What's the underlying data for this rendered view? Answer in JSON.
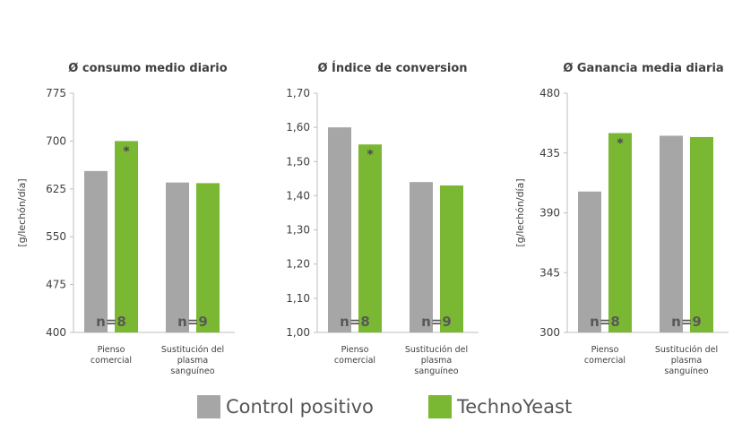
{
  "colors": {
    "control": "#a6a6a6",
    "techno": "#7ab833",
    "axis": "#bfbfbf",
    "text": "#404040",
    "nlabel": "#595959"
  },
  "legend": {
    "control": "Control positivo",
    "techno": "TechnoYeast"
  },
  "chart_data": [
    {
      "type": "bar",
      "title": "Ø consumo medio diario",
      "ylabel": "[g/lechón/día]",
      "ylim": [
        400,
        775
      ],
      "yticks": [
        "400",
        "475",
        "550",
        "625",
        "700",
        "775"
      ],
      "ytick_values": [
        400,
        475,
        550,
        625,
        700,
        775
      ],
      "categories": [
        [
          "Pienso",
          "comercial"
        ],
        [
          "Sustitución del",
          "plasma",
          "sanguíneo"
        ]
      ],
      "n_labels": [
        "n=8",
        "n=9"
      ],
      "series": [
        {
          "name": "Control positivo",
          "values": [
            653,
            635
          ]
        },
        {
          "name": "TechnoYeast",
          "values": [
            700,
            634
          ]
        }
      ],
      "annotations": [
        {
          "text": "*",
          "category": 0,
          "series": 1
        }
      ]
    },
    {
      "type": "bar",
      "title": "Ø Índice de conversion",
      "ylabel": "",
      "ylim": [
        1.0,
        1.7
      ],
      "yticks": [
        "1,00",
        "1,10",
        "1,20",
        "1,30",
        "1,40",
        "1,50",
        "1,60",
        "1,70"
      ],
      "ytick_values": [
        1.0,
        1.1,
        1.2,
        1.3,
        1.4,
        1.5,
        1.6,
        1.7
      ],
      "categories": [
        [
          "Pienso",
          "comercial"
        ],
        [
          "Sustitución del",
          "plasma",
          "sanguíneo"
        ]
      ],
      "n_labels": [
        "n=8",
        "n=9"
      ],
      "series": [
        {
          "name": "Control positivo",
          "values": [
            1.6,
            1.44
          ]
        },
        {
          "name": "TechnoYeast",
          "values": [
            1.55,
            1.43
          ]
        }
      ],
      "annotations": [
        {
          "text": "*",
          "category": 0,
          "series": 1
        }
      ]
    },
    {
      "type": "bar",
      "title": "Ø Ganancia media diaria",
      "ylabel": "[g/lechón/día]",
      "ylim": [
        300,
        480
      ],
      "yticks": [
        "300",
        "345",
        "390",
        "435",
        "480"
      ],
      "ytick_values": [
        300,
        345,
        390,
        435,
        480
      ],
      "categories": [
        [
          "Pienso",
          "comercial"
        ],
        [
          "Sustitución del",
          "plasma",
          "sanguíneo"
        ]
      ],
      "n_labels": [
        "n=8",
        "n=9"
      ],
      "series": [
        {
          "name": "Control positivo",
          "values": [
            406,
            448
          ]
        },
        {
          "name": "TechnoYeast",
          "values": [
            450,
            447
          ]
        }
      ],
      "annotations": [
        {
          "text": "*",
          "category": 0,
          "series": 1
        }
      ]
    }
  ]
}
